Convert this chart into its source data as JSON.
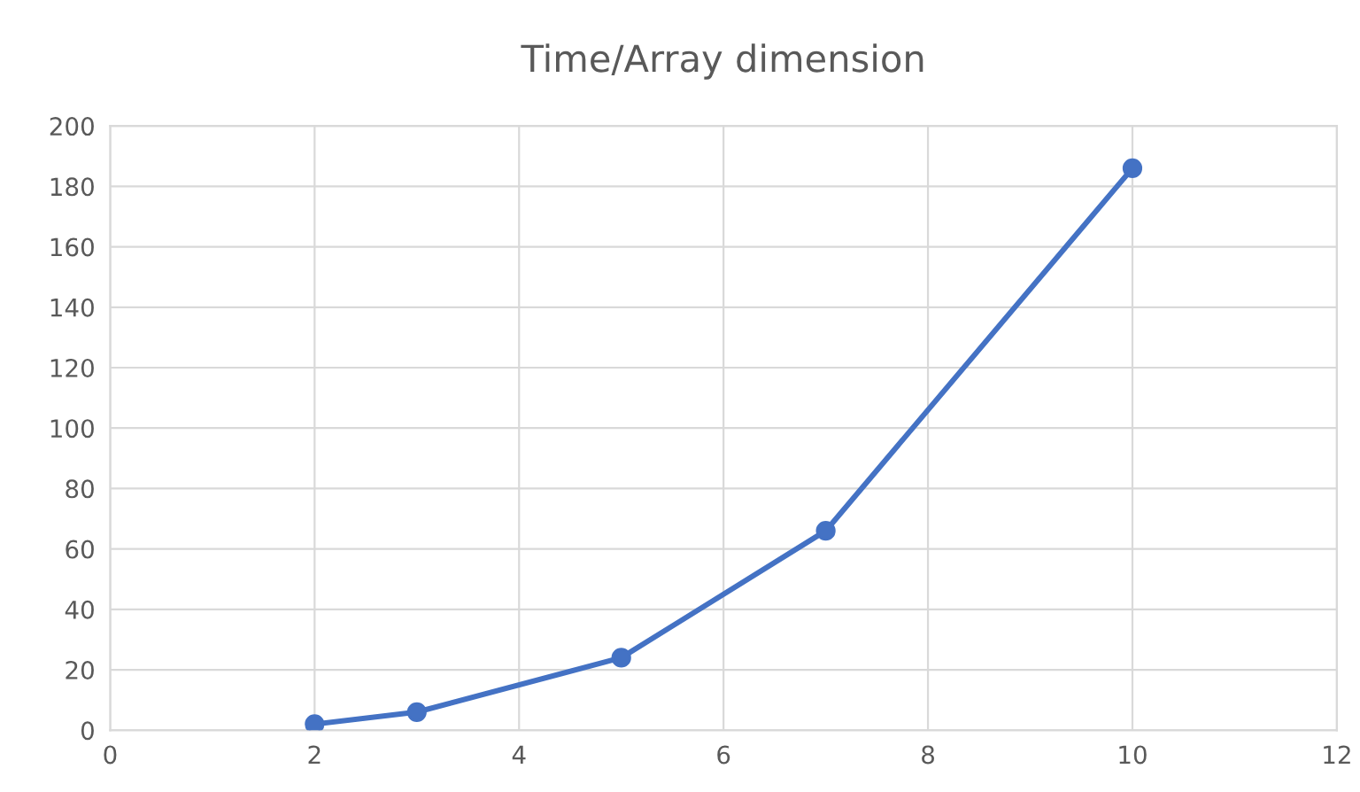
{
  "chart_data": {
    "type": "line",
    "title": "Time/Array dimension",
    "x": [
      2,
      3,
      5,
      7,
      10
    ],
    "series": [
      {
        "color": "#4472c4",
        "values": [
          2,
          6,
          24,
          66,
          186
        ]
      }
    ],
    "xlim": [
      0,
      12
    ],
    "xticks": [
      0,
      2,
      4,
      6,
      8,
      10,
      12
    ],
    "ylim": [
      0,
      200
    ],
    "yticks": [
      0,
      20,
      40,
      60,
      80,
      100,
      120,
      140,
      160,
      180,
      200
    ],
    "grid": true,
    "marker": "circle",
    "line_style": "solid"
  }
}
